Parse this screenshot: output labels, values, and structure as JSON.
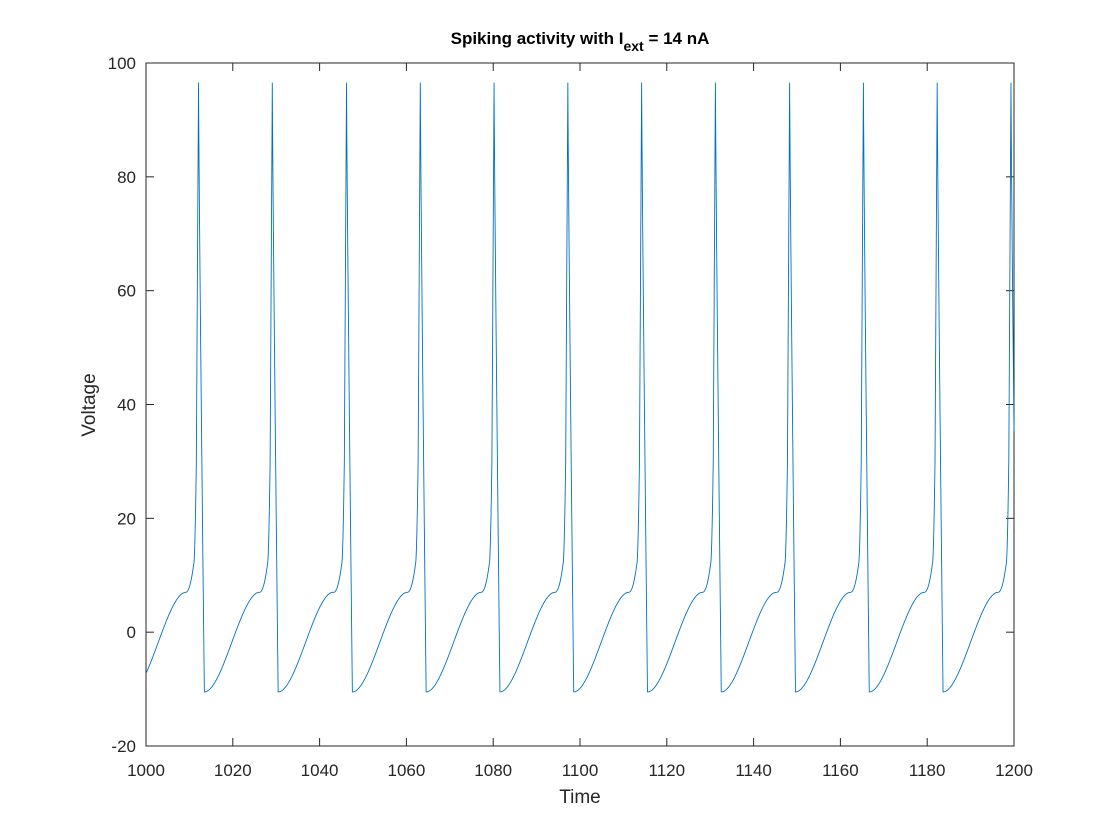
{
  "chart_data": {
    "type": "line",
    "title": {
      "prefix": "Spiking activity with I",
      "subscript": "ext",
      "suffix": " = 14 nA"
    },
    "xlabel": "Time",
    "ylabel": "Voltage",
    "xlim": [
      1000,
      1200
    ],
    "ylim": [
      -20,
      100
    ],
    "xticks": [
      1000,
      1020,
      1040,
      1060,
      1080,
      1100,
      1120,
      1140,
      1160,
      1180,
      1200
    ],
    "yticks": [
      -20,
      0,
      20,
      40,
      60,
      80,
      100
    ],
    "grid": false,
    "series": [
      {
        "color": "#0072BD",
        "spike_times": [
          1012.1,
          1029.1,
          1046.2,
          1063.2,
          1080.2,
          1097.2,
          1114.2,
          1131.2,
          1148.3,
          1165.3,
          1182.3,
          1199.3
        ],
        "peak_voltage": 96.5,
        "trough_voltage": -10.5,
        "start_voltage": -7.5,
        "shoulder_voltage": 7.0,
        "pre_spike_voltage": 12.0
      }
    ]
  }
}
